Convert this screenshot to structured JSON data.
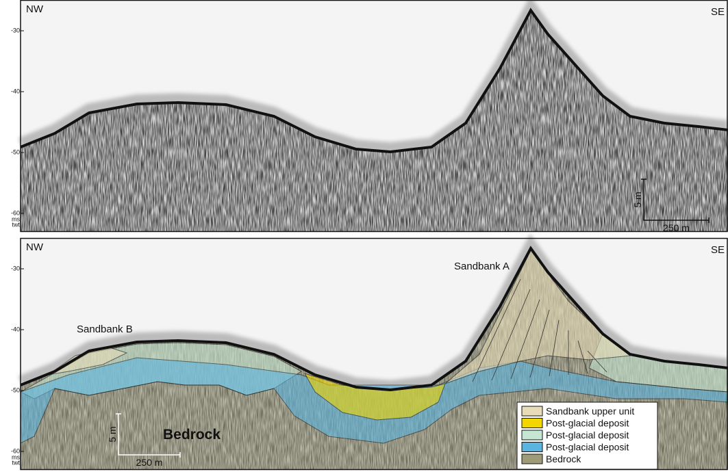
{
  "panels": [
    {
      "left_label": "NW",
      "right_label": "SE",
      "ticks": [
        -30,
        -40,
        -50,
        -60
      ],
      "unit": [
        "ms",
        "twt"
      ],
      "scale_bar": {
        "vertical": "5 m",
        "horizontal": "250 m"
      }
    },
    {
      "left_label": "NW",
      "right_label": "SE",
      "ticks": [
        -30,
        -40,
        -50,
        -60
      ],
      "unit": [
        "ms",
        "twt"
      ],
      "scale_bar": {
        "vertical": "5 m",
        "horizontal": "250 m"
      },
      "annotations": [
        "Sandbank A",
        "Sandbank B",
        "Bedrock"
      ],
      "legend": [
        {
          "label": "Sandbank upper unit",
          "color": "#e8dcb8"
        },
        {
          "label": "Post-glacial deposit",
          "color": "#f2d600"
        },
        {
          "label": "Post-glacial deposit",
          "color": "#c4e6d2"
        },
        {
          "label": "Post-glacial deposit",
          "color": "#5bb4e0"
        },
        {
          "label": "Bedrock",
          "color": "#9e9c78"
        }
      ]
    }
  ]
}
